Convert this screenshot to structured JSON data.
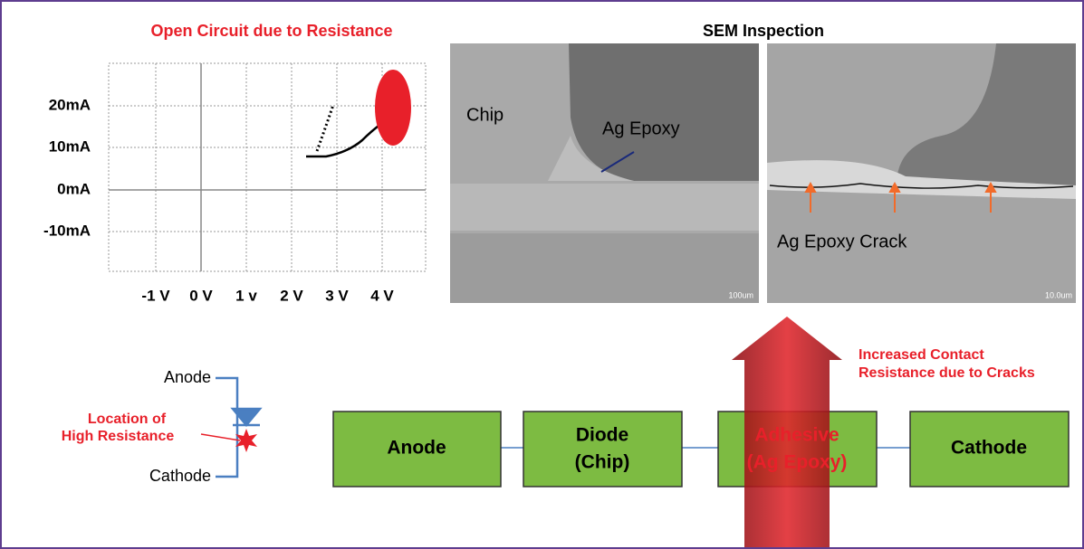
{
  "iv_plot": {
    "title": "Open Circuit due to Resistance",
    "y_labels": [
      "20mA",
      "10mA",
      "0mA",
      "-10mA"
    ],
    "x_labels": [
      "-1 V",
      "0 V",
      "1 v",
      "2 V",
      "3 V",
      "4 V"
    ]
  },
  "sem": {
    "title": "SEM Inspection",
    "left_image": {
      "labels": [
        "Chip",
        "Ag Epoxy"
      ],
      "scale": "100um"
    },
    "right_image": {
      "labels": [
        "Ag Epoxy Crack"
      ],
      "scale": "10.0um"
    }
  },
  "circuit": {
    "anode": "Anode",
    "cathode": "Cathode",
    "note": [
      "Location of",
      "High Resistance"
    ]
  },
  "arrow_label": [
    "Increased Contact",
    "Resistance due to Cracks"
  ],
  "blocks": [
    {
      "lines": [
        "Anode"
      ]
    },
    {
      "lines": [
        "Diode",
        "(Chip)"
      ]
    },
    {
      "lines": [
        "Adhesive",
        "(Ag Epoxy)"
      ]
    },
    {
      "lines": [
        "Cathode"
      ]
    }
  ]
}
